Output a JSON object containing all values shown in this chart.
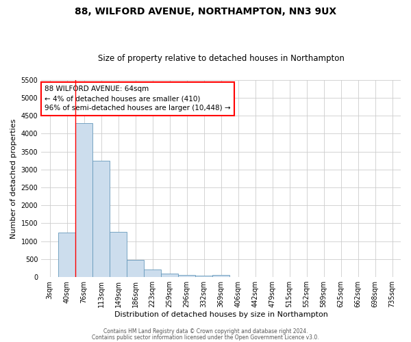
{
  "title": "88, WILFORD AVENUE, NORTHAMPTON, NN3 9UX",
  "subtitle": "Size of property relative to detached houses in Northampton",
  "xlabel": "Distribution of detached houses by size in Northampton",
  "ylabel": "Number of detached properties",
  "footer1": "Contains HM Land Registry data © Crown copyright and database right 2024.",
  "footer2": "Contains public sector information licensed under the Open Government Licence v3.0.",
  "annotation_lines": [
    "88 WILFORD AVENUE: 64sqm",
    "← 4% of detached houses are smaller (410)",
    "96% of semi-detached houses are larger (10,448) →"
  ],
  "bar_labels": [
    "3sqm",
    "40sqm",
    "76sqm",
    "113sqm",
    "149sqm",
    "186sqm",
    "223sqm",
    "259sqm",
    "296sqm",
    "332sqm",
    "369sqm",
    "406sqm",
    "442sqm",
    "479sqm",
    "515sqm",
    "552sqm",
    "589sqm",
    "625sqm",
    "662sqm",
    "698sqm",
    "735sqm"
  ],
  "bar_values": [
    0,
    1250,
    4300,
    3250,
    1270,
    480,
    210,
    90,
    55,
    40,
    55,
    0,
    0,
    0,
    0,
    0,
    0,
    0,
    0,
    0,
    0
  ],
  "bar_color": "#ccdded",
  "bar_edge_color": "#6699bb",
  "red_line_x": 1.5,
  "ylim": [
    0,
    5500
  ],
  "yticks": [
    0,
    500,
    1000,
    1500,
    2000,
    2500,
    3000,
    3500,
    4000,
    4500,
    5000,
    5500
  ],
  "bg_color": "#ffffff",
  "grid_color": "#cccccc",
  "title_fontsize": 10,
  "subtitle_fontsize": 8.5,
  "axis_label_fontsize": 8,
  "tick_fontsize": 7,
  "annotation_fontsize": 7.5,
  "footer_fontsize": 5.5
}
